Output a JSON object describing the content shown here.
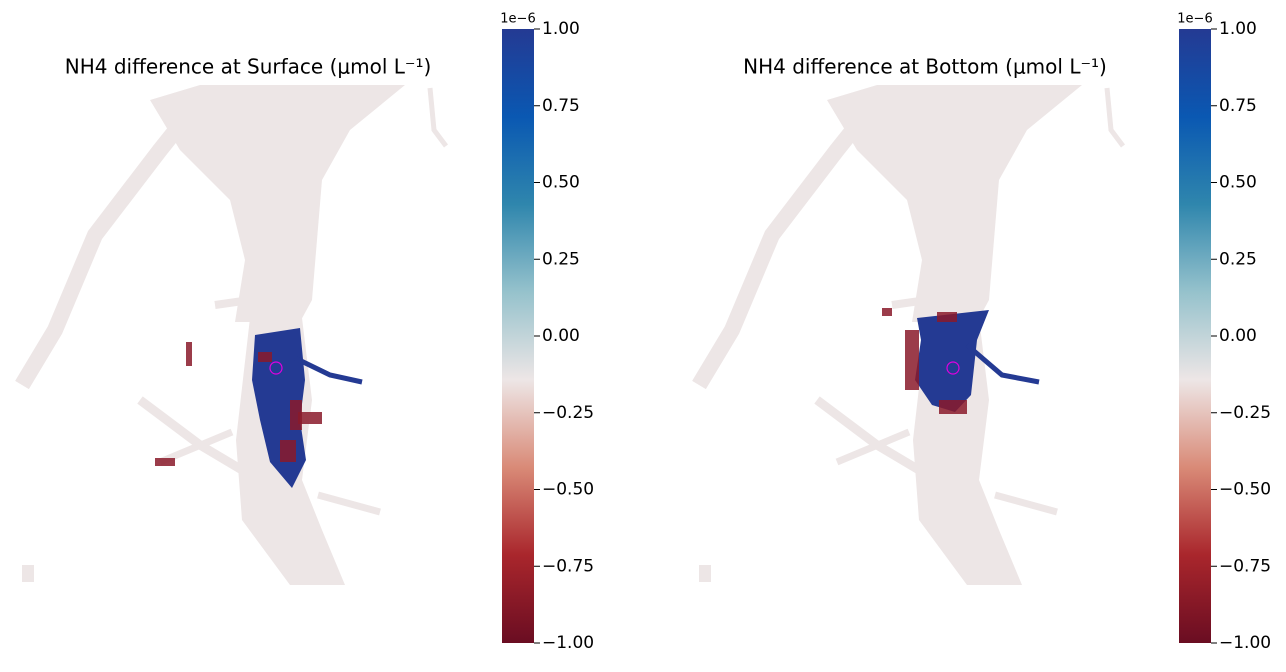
{
  "chart_data": [
    {
      "type": "heatmap",
      "title": "NH4 difference at Surface (μmol L⁻¹)",
      "colorbar": {
        "offset_label": "1e−6",
        "vlim": [
          -1,
          1
        ],
        "ticks": [
          {
            "value": 1,
            "label": "1.00"
          },
          {
            "value": 0.75,
            "label": "0.75"
          },
          {
            "value": 0.5,
            "label": "0.50"
          },
          {
            "value": 0.25,
            "label": "0.25"
          },
          {
            "value": 0,
            "label": "0.00"
          },
          {
            "value": -0.25,
            "label": "−0.25"
          },
          {
            "value": -0.5,
            "label": "−0.50"
          },
          {
            "value": -0.75,
            "label": "−0.75"
          },
          {
            "value": -1,
            "label": "−1.00"
          }
        ],
        "colormap": [
          "#6a0d22",
          "#a9262c",
          "#d98a77",
          "#ede6e6",
          "#96c2cc",
          "#2f86ad",
          "#0a58b2",
          "#243a93"
        ]
      }
    },
    {
      "type": "heatmap",
      "title": "NH4 difference at Bottom (μmol L⁻¹)",
      "colorbar": {
        "offset_label": "1e−6",
        "vlim": [
          -1,
          1
        ],
        "ticks": [
          {
            "value": 1,
            "label": "1.00"
          },
          {
            "value": 0.75,
            "label": "0.75"
          },
          {
            "value": 0.5,
            "label": "0.50"
          },
          {
            "value": 0.25,
            "label": "0.25"
          },
          {
            "value": 0,
            "label": "0.00"
          },
          {
            "value": -0.25,
            "label": "−0.25"
          },
          {
            "value": -0.5,
            "label": "−0.50"
          },
          {
            "value": -0.75,
            "label": "−0.75"
          },
          {
            "value": -1,
            "label": "−1.00"
          }
        ],
        "colormap": [
          "#6a0d22",
          "#a9262c",
          "#d98a77",
          "#ede6e6",
          "#96c2cc",
          "#2f86ad",
          "#0a58b2",
          "#243a93"
        ]
      }
    }
  ]
}
